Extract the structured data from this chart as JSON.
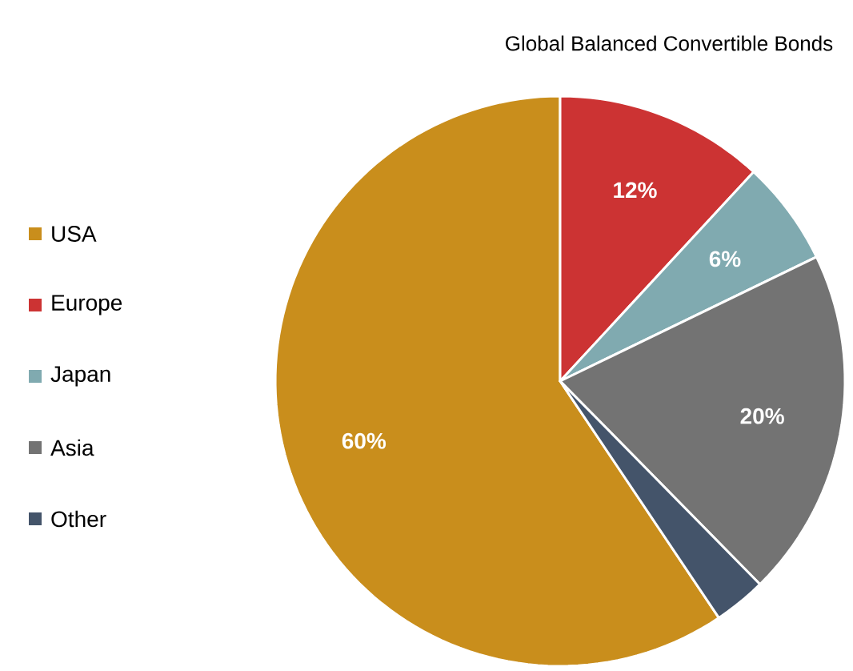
{
  "chart_data": {
    "type": "pie",
    "title": "Global Balanced Convertible Bonds",
    "categories": [
      "USA",
      "Europe",
      "Japan",
      "Asia",
      "Other"
    ],
    "values": [
      60,
      12,
      6,
      20,
      3
    ],
    "value_labels": [
      "60%",
      "12%",
      "6%",
      "20%",
      null
    ],
    "colors": [
      "#c98e1c",
      "#cc3333",
      "#80aab0",
      "#737373",
      "#44546a"
    ],
    "legend": "left"
  }
}
